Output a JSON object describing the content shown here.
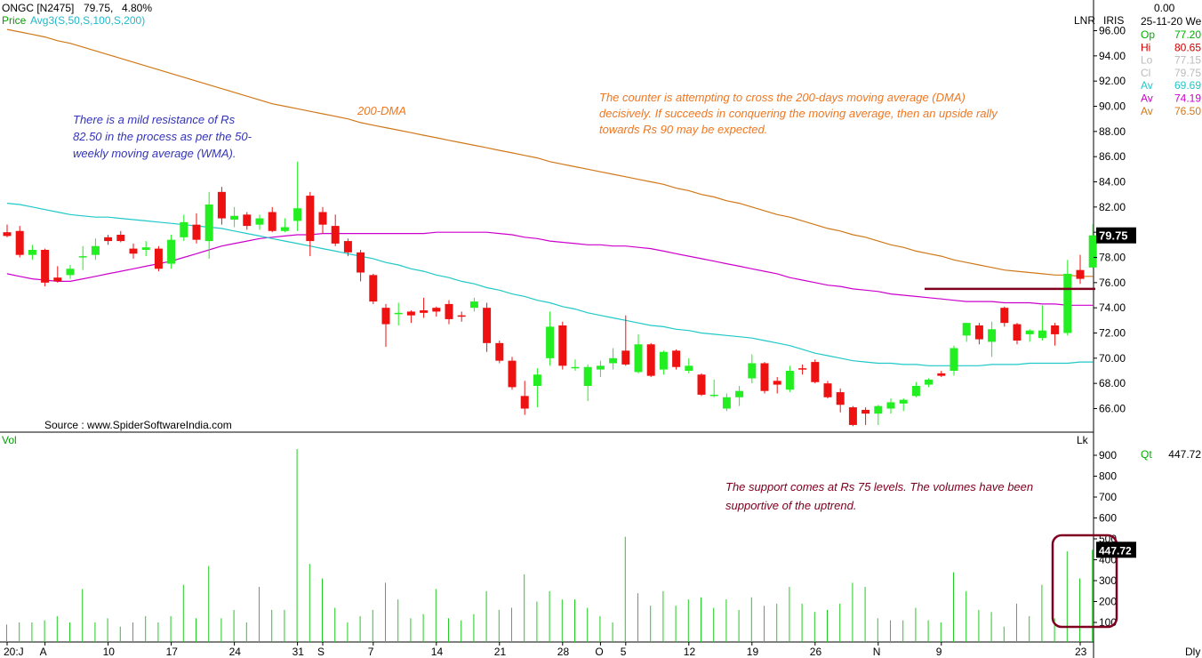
{
  "header": {
    "symbol": "ONGC [N2475]",
    "price": "79.75,",
    "change": "4.80%",
    "indicator_prefix": "Price",
    "indicator": "Avg3(S,50,S,100,S,200)"
  },
  "right_panel": {
    "tag1": "LNR",
    "tag2": "IRIS",
    "top_value": "0.00",
    "date": "25-11-20 We",
    "rows": [
      {
        "label": "Op",
        "value": "77.20",
        "color": "#00b000"
      },
      {
        "label": "Hi",
        "value": "80.65",
        "color": "#cc0000"
      },
      {
        "label": "Lo",
        "value": "77.15",
        "color": "#bbbbbb"
      },
      {
        "label": "Cl",
        "value": "79.75",
        "color": "#bbbbbb"
      },
      {
        "label": "Av",
        "value": "69.69",
        "color": "#20c8c8"
      },
      {
        "label": "Av",
        "value": "74.19",
        "color": "#cc00cc"
      },
      {
        "label": "Av",
        "value": "76.50",
        "color": "#d07818"
      }
    ],
    "lk_label": "Lk",
    "qt_label": "Qt",
    "qt_value": "447.72"
  },
  "price_axis": {
    "ticks": [
      "96.00",
      "94.00",
      "92.00",
      "90.00",
      "88.00",
      "86.00",
      "84.00",
      "82.00",
      "80.00",
      "78.00",
      "76.00",
      "74.00",
      "72.00",
      "70.00",
      "68.00",
      "66.00"
    ],
    "last_price_tag": "79.75"
  },
  "volume_axis": {
    "label": "Vol",
    "ticks": [
      "900",
      "800",
      "700",
      "600",
      "500",
      "400",
      "300",
      "200",
      "100"
    ],
    "last_volume_tag": "447.72"
  },
  "x_axis": {
    "labels": [
      "20:J",
      "A",
      "10",
      "17",
      "24",
      "31",
      "S",
      "7",
      "14",
      "21",
      "28",
      "O",
      "5",
      "12",
      "19",
      "26",
      "N",
      "9",
      "23"
    ],
    "period": "Dly"
  },
  "annotations": {
    "source": "Source : www.SpiderSoftwareIndia.com",
    "dma_label": "200-DMA",
    "resistance_note": [
      "There is a mild resistance of Rs",
      "82.50 in the process as per the 50-",
      "weekly moving average (WMA)."
    ],
    "dma_note": [
      "The counter is attempting to cross the 200-days moving average (DMA)",
      "decisively. If succeeds in conquering the moving average, then an upside rally",
      "towards Rs 90 may be expected."
    ],
    "support_note": [
      "The support comes at Rs 75 levels. The volumes have been",
      "supportive of the uptrend."
    ]
  },
  "colors": {
    "up": "#22ee22",
    "down": "#ee1111",
    "ma50": "#20c8c8",
    "ma100": "#cc00cc",
    "ma200": "#d07818",
    "support_line": "#800020",
    "volume": "#22cc22",
    "note_blue": "#3333bb",
    "note_orange": "#ee7722",
    "note_maroon": "#800020"
  },
  "chart_data": {
    "type": "candlestick",
    "y_range": [
      64.6,
      97
    ],
    "volume_range": [
      0,
      1000
    ],
    "candles": [
      {
        "o": 80.0,
        "h": 80.6,
        "l": 79.6,
        "c": 79.7,
        "v": 90
      },
      {
        "o": 80.1,
        "h": 80.5,
        "l": 78.0,
        "c": 78.2,
        "v": 100
      },
      {
        "o": 78.2,
        "h": 79.0,
        "l": 77.8,
        "c": 78.6,
        "v": 100
      },
      {
        "o": 78.6,
        "h": 78.7,
        "l": 75.7,
        "c": 76.0,
        "v": 110
      },
      {
        "o": 76.4,
        "h": 77.3,
        "l": 76.0,
        "c": 76.1,
        "v": 130
      },
      {
        "o": 76.6,
        "h": 77.4,
        "l": 76.3,
        "c": 77.1,
        "v": 100
      },
      {
        "o": 78.0,
        "h": 78.9,
        "l": 77.0,
        "c": 78.1,
        "v": 260
      },
      {
        "o": 78.2,
        "h": 79.5,
        "l": 77.8,
        "c": 78.9,
        "v": 100
      },
      {
        "o": 79.6,
        "h": 79.8,
        "l": 79.0,
        "c": 79.3,
        "v": 120
      },
      {
        "o": 79.8,
        "h": 80.1,
        "l": 79.2,
        "c": 79.3,
        "v": 80
      },
      {
        "o": 78.7,
        "h": 79.1,
        "l": 77.9,
        "c": 78.3,
        "v": 100
      },
      {
        "o": 78.6,
        "h": 79.3,
        "l": 78.1,
        "c": 78.8,
        "v": 130
      },
      {
        "o": 78.7,
        "h": 78.9,
        "l": 76.9,
        "c": 77.1,
        "v": 100
      },
      {
        "o": 77.5,
        "h": 79.8,
        "l": 77.1,
        "c": 79.4,
        "v": 130
      },
      {
        "o": 79.6,
        "h": 81.4,
        "l": 79.3,
        "c": 80.8,
        "v": 280
      },
      {
        "o": 80.6,
        "h": 81.5,
        "l": 79.1,
        "c": 79.4,
        "v": 120
      },
      {
        "o": 79.3,
        "h": 83.2,
        "l": 77.9,
        "c": 82.2,
        "v": 370
      },
      {
        "o": 83.2,
        "h": 83.6,
        "l": 80.6,
        "c": 81.1,
        "v": 120
      },
      {
        "o": 81.0,
        "h": 82.0,
        "l": 80.4,
        "c": 81.3,
        "v": 160
      },
      {
        "o": 81.4,
        "h": 81.6,
        "l": 80.2,
        "c": 80.5,
        "v": 100
      },
      {
        "o": 80.6,
        "h": 81.4,
        "l": 80.2,
        "c": 81.1,
        "v": 270
      },
      {
        "o": 81.6,
        "h": 82.0,
        "l": 80.0,
        "c": 80.1,
        "v": 160
      },
      {
        "o": 80.1,
        "h": 81.1,
        "l": 80.0,
        "c": 80.4,
        "v": 160
      },
      {
        "o": 80.9,
        "h": 85.6,
        "l": 80.1,
        "c": 81.9,
        "v": 930
      },
      {
        "o": 82.9,
        "h": 83.2,
        "l": 78.1,
        "c": 79.3,
        "v": 380
      },
      {
        "o": 81.6,
        "h": 82.0,
        "l": 79.9,
        "c": 80.6,
        "v": 310
      },
      {
        "o": 80.5,
        "h": 81.4,
        "l": 78.9,
        "c": 79.1,
        "v": 170
      },
      {
        "o": 79.3,
        "h": 79.5,
        "l": 78.1,
        "c": 78.4,
        "v": 100
      },
      {
        "o": 78.4,
        "h": 78.6,
        "l": 76.1,
        "c": 76.8,
        "v": 130
      },
      {
        "o": 76.6,
        "h": 76.7,
        "l": 74.3,
        "c": 74.5,
        "v": 160
      },
      {
        "o": 74.0,
        "h": 74.3,
        "l": 70.9,
        "c": 72.7,
        "v": 290
      },
      {
        "o": 73.6,
        "h": 74.4,
        "l": 72.6,
        "c": 73.6,
        "v": 210
      },
      {
        "o": 73.7,
        "h": 73.8,
        "l": 72.8,
        "c": 73.4,
        "v": 120
      },
      {
        "o": 73.8,
        "h": 74.8,
        "l": 73.2,
        "c": 73.6,
        "v": 140
      },
      {
        "o": 74.0,
        "h": 74.1,
        "l": 73.3,
        "c": 73.7,
        "v": 260
      },
      {
        "o": 74.3,
        "h": 74.6,
        "l": 72.7,
        "c": 73.1,
        "v": 120
      },
      {
        "o": 73.4,
        "h": 73.7,
        "l": 72.9,
        "c": 73.3,
        "v": 110
      },
      {
        "o": 74.0,
        "h": 74.8,
        "l": 73.7,
        "c": 74.5,
        "v": 140
      },
      {
        "o": 74.0,
        "h": 74.4,
        "l": 70.5,
        "c": 71.2,
        "v": 250
      },
      {
        "o": 71.2,
        "h": 71.4,
        "l": 69.6,
        "c": 69.8,
        "v": 160
      },
      {
        "o": 69.8,
        "h": 70.1,
        "l": 67.5,
        "c": 67.7,
        "v": 170
      },
      {
        "o": 67.0,
        "h": 68.2,
        "l": 65.5,
        "c": 66.0,
        "v": 330
      },
      {
        "o": 67.8,
        "h": 69.2,
        "l": 66.1,
        "c": 68.7,
        "v": 200
      },
      {
        "o": 70.0,
        "h": 73.7,
        "l": 69.4,
        "c": 72.5,
        "v": 250
      },
      {
        "o": 72.6,
        "h": 72.9,
        "l": 69.1,
        "c": 69.4,
        "v": 210
      },
      {
        "o": 69.3,
        "h": 69.9,
        "l": 69.0,
        "c": 69.3,
        "v": 210
      },
      {
        "o": 67.8,
        "h": 69.5,
        "l": 66.6,
        "c": 69.3,
        "v": 170
      },
      {
        "o": 69.1,
        "h": 69.8,
        "l": 68.5,
        "c": 69.4,
        "v": 130
      },
      {
        "o": 69.6,
        "h": 70.8,
        "l": 69.1,
        "c": 70.0,
        "v": 100
      },
      {
        "o": 70.6,
        "h": 73.4,
        "l": 69.4,
        "c": 69.5,
        "v": 510
      },
      {
        "o": 68.9,
        "h": 71.9,
        "l": 68.8,
        "c": 71.1,
        "v": 240
      },
      {
        "o": 71.1,
        "h": 71.2,
        "l": 68.5,
        "c": 68.6,
        "v": 180
      },
      {
        "o": 69.1,
        "h": 70.6,
        "l": 68.7,
        "c": 70.5,
        "v": 250
      },
      {
        "o": 70.6,
        "h": 70.7,
        "l": 69.1,
        "c": 69.3,
        "v": 180
      },
      {
        "o": 69.0,
        "h": 70.0,
        "l": 68.8,
        "c": 69.4,
        "v": 210
      },
      {
        "o": 68.7,
        "h": 68.8,
        "l": 67.0,
        "c": 67.1,
        "v": 220
      },
      {
        "o": 67.0,
        "h": 68.3,
        "l": 66.9,
        "c": 67.1,
        "v": 170
      },
      {
        "o": 66.0,
        "h": 67.2,
        "l": 65.8,
        "c": 66.9,
        "v": 210
      },
      {
        "o": 66.9,
        "h": 67.8,
        "l": 66.2,
        "c": 67.4,
        "v": 160
      },
      {
        "o": 68.4,
        "h": 70.3,
        "l": 68.0,
        "c": 69.6,
        "v": 220
      },
      {
        "o": 69.6,
        "h": 69.7,
        "l": 67.2,
        "c": 67.4,
        "v": 180
      },
      {
        "o": 68.2,
        "h": 68.5,
        "l": 67.2,
        "c": 67.9,
        "v": 190
      },
      {
        "o": 67.5,
        "h": 69.4,
        "l": 67.3,
        "c": 69.0,
        "v": 270
      },
      {
        "o": 69.2,
        "h": 69.5,
        "l": 68.7,
        "c": 69.1,
        "v": 190
      },
      {
        "o": 69.7,
        "h": 69.9,
        "l": 68.0,
        "c": 68.1,
        "v": 150
      },
      {
        "o": 68.0,
        "h": 68.2,
        "l": 66.8,
        "c": 66.9,
        "v": 160
      },
      {
        "o": 67.3,
        "h": 67.6,
        "l": 65.7,
        "c": 66.3,
        "v": 190
      },
      {
        "o": 66.1,
        "h": 66.2,
        "l": 64.6,
        "c": 64.7,
        "v": 290
      },
      {
        "o": 65.9,
        "h": 66.1,
        "l": 64.7,
        "c": 65.6,
        "v": 270
      },
      {
        "o": 65.6,
        "h": 66.3,
        "l": 64.7,
        "c": 66.2,
        "v": 120
      },
      {
        "o": 66.0,
        "h": 66.8,
        "l": 65.6,
        "c": 66.5,
        "v": 110
      },
      {
        "o": 66.4,
        "h": 66.8,
        "l": 65.8,
        "c": 66.7,
        "v": 110
      },
      {
        "o": 67.0,
        "h": 68.1,
        "l": 66.9,
        "c": 67.8,
        "v": 170
      },
      {
        "o": 67.9,
        "h": 68.4,
        "l": 67.7,
        "c": 68.3,
        "v": 110
      },
      {
        "o": 68.8,
        "h": 69.0,
        "l": 68.5,
        "c": 68.6,
        "v": 100
      },
      {
        "o": 69.0,
        "h": 71.0,
        "l": 68.6,
        "c": 70.8,
        "v": 340
      },
      {
        "o": 71.8,
        "h": 72.8,
        "l": 71.3,
        "c": 72.8,
        "v": 250
      },
      {
        "o": 72.6,
        "h": 72.8,
        "l": 71.1,
        "c": 71.5,
        "v": 160
      },
      {
        "o": 71.3,
        "h": 72.9,
        "l": 70.1,
        "c": 72.3,
        "v": 150
      },
      {
        "o": 74.0,
        "h": 74.1,
        "l": 72.5,
        "c": 72.8,
        "v": 80
      },
      {
        "o": 72.7,
        "h": 72.8,
        "l": 71.1,
        "c": 71.4,
        "v": 190
      },
      {
        "o": 71.9,
        "h": 72.3,
        "l": 71.3,
        "c": 72.2,
        "v": 130
      },
      {
        "o": 71.6,
        "h": 74.2,
        "l": 71.4,
        "c": 72.2,
        "v": 280
      },
      {
        "o": 72.6,
        "h": 72.8,
        "l": 71.0,
        "c": 71.9,
        "v": 120
      },
      {
        "o": 72.0,
        "h": 77.8,
        "l": 71.8,
        "c": 76.7,
        "v": 440
      },
      {
        "o": 77.0,
        "h": 78.2,
        "l": 75.9,
        "c": 76.3,
        "v": 310
      },
      {
        "o": 77.2,
        "h": 80.65,
        "l": 77.15,
        "c": 79.75,
        "v": 447.72
      }
    ],
    "ma50": [
      82.3,
      82.2,
      82.0,
      81.8,
      81.6,
      81.4,
      81.3,
      81.2,
      81.2,
      81.1,
      81.0,
      80.9,
      80.8,
      80.7,
      80.6,
      80.5,
      80.4,
      80.3,
      80.1,
      79.9,
      79.7,
      79.5,
      79.3,
      79.1,
      78.9,
      78.7,
      78.5,
      78.3,
      78.1,
      77.9,
      77.6,
      77.4,
      77.1,
      76.9,
      76.6,
      76.4,
      76.1,
      75.9,
      75.6,
      75.4,
      75.1,
      74.9,
      74.6,
      74.4,
      74.1,
      73.9,
      73.6,
      73.4,
      73.2,
      73.0,
      72.8,
      72.6,
      72.5,
      72.3,
      72.2,
      72.0,
      71.9,
      71.8,
      71.7,
      71.6,
      71.4,
      71.2,
      71.0,
      70.7,
      70.4,
      70.2,
      70.0,
      69.8,
      69.7,
      69.6,
      69.6,
      69.5,
      69.5,
      69.4,
      69.4,
      69.4,
      69.4,
      69.4,
      69.5,
      69.5,
      69.5,
      69.6,
      69.6,
      69.6,
      69.6,
      69.7,
      69.7
    ],
    "ma100": [
      76.7,
      76.5,
      76.3,
      76.2,
      76.1,
      76.1,
      76.3,
      76.5,
      76.7,
      76.9,
      77.1,
      77.3,
      77.5,
      77.7,
      78.0,
      78.3,
      78.6,
      78.9,
      79.1,
      79.3,
      79.5,
      79.6,
      79.7,
      79.8,
      79.8,
      79.9,
      79.9,
      79.9,
      79.9,
      79.9,
      79.9,
      79.9,
      79.9,
      79.9,
      80.0,
      80.0,
      80.0,
      80.0,
      80.0,
      79.9,
      79.8,
      79.6,
      79.5,
      79.3,
      79.2,
      79.1,
      79.0,
      79.0,
      78.9,
      78.9,
      78.8,
      78.7,
      78.5,
      78.3,
      78.1,
      77.9,
      77.7,
      77.5,
      77.3,
      77.1,
      76.9,
      76.7,
      76.4,
      76.2,
      76.0,
      75.8,
      75.7,
      75.5,
      75.4,
      75.3,
      75.1,
      75.0,
      74.9,
      74.8,
      74.7,
      74.6,
      74.5,
      74.5,
      74.5,
      74.4,
      74.4,
      74.4,
      74.3,
      74.3,
      74.2,
      74.2,
      74.2
    ],
    "ma200": [
      96.1,
      95.9,
      95.7,
      95.5,
      95.2,
      95.0,
      94.7,
      94.4,
      94.1,
      93.8,
      93.5,
      93.2,
      92.9,
      92.6,
      92.3,
      92.0,
      91.7,
      91.4,
      91.1,
      90.8,
      90.5,
      90.2,
      90.0,
      89.8,
      89.6,
      89.4,
      89.2,
      89.0,
      88.7,
      88.5,
      88.3,
      88.1,
      87.9,
      87.7,
      87.5,
      87.3,
      87.1,
      86.9,
      86.7,
      86.5,
      86.3,
      86.1,
      85.9,
      85.6,
      85.4,
      85.2,
      85.0,
      84.8,
      84.6,
      84.4,
      84.2,
      84.0,
      83.8,
      83.5,
      83.3,
      83.0,
      82.8,
      82.5,
      82.3,
      82.0,
      81.7,
      81.4,
      81.2,
      80.9,
      80.6,
      80.3,
      80.1,
      79.8,
      79.6,
      79.3,
      79.0,
      78.8,
      78.5,
      78.3,
      78.1,
      77.8,
      77.6,
      77.4,
      77.2,
      77.0,
      76.9,
      76.8,
      76.7,
      76.6,
      76.6,
      76.5,
      76.5
    ],
    "support_level": 75.5,
    "x_label_candle_index": [
      0,
      3,
      8,
      13,
      18,
      23,
      25,
      29,
      34,
      39,
      44,
      47,
      49,
      54,
      59,
      64,
      69,
      74,
      85
    ]
  }
}
